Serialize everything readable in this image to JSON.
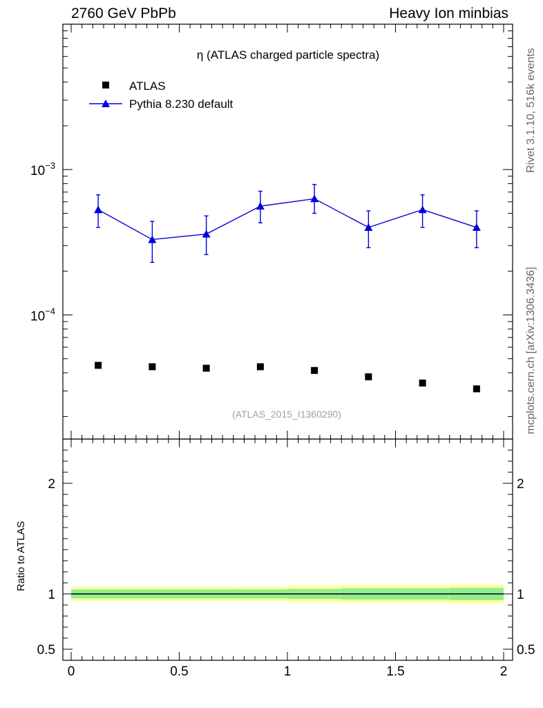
{
  "header": {
    "left": "2760 GeV PbPb",
    "right": "Heavy Ion minbias"
  },
  "side_labels": {
    "rivet": "Rivet 3.1.10,  516k events",
    "mcplots": "mcplots.cern.ch [arXiv:1306.3436]"
  },
  "colors": {
    "mc": "#0000dd",
    "data": "#000000",
    "band_inner": "#90ee90",
    "band_outer": "#ffff99"
  },
  "chart_data": [
    {
      "type": "scatter",
      "title": "η (ATLAS charged particle spectra)",
      "analysis_tag": "(ATLAS_2015_I1360290)",
      "yscale": "log",
      "xlim": [
        0,
        2
      ],
      "ylim": [
        1.4e-05,
        0.01
      ],
      "ytick_labels": [
        {
          "value": 0.001,
          "base": "10",
          "exp": "−3"
        },
        {
          "value": 0.0001,
          "base": "10",
          "exp": "−4"
        }
      ],
      "legend": "top-left",
      "series": [
        {
          "name": "ATLAS",
          "marker": "square",
          "x": [
            0.125,
            0.375,
            0.625,
            0.875,
            1.125,
            1.375,
            1.625,
            1.875
          ],
          "y": [
            4.5e-05,
            4.4e-05,
            4.3e-05,
            4.4e-05,
            4.15e-05,
            3.75e-05,
            3.4e-05,
            3.1e-05
          ]
        },
        {
          "name": "Pythia 8.230 default",
          "marker": "triangle",
          "line": true,
          "x": [
            0.125,
            0.375,
            0.625,
            0.875,
            1.125,
            1.375,
            1.625,
            1.875
          ],
          "y": [
            0.00053,
            0.00033,
            0.00036,
            0.00056,
            0.00063,
            0.0004,
            0.00053,
            0.0004
          ],
          "yerr_low": [
            0.00013,
            0.0001,
            0.0001,
            0.00013,
            0.00013,
            0.00011,
            0.00013,
            0.00011
          ],
          "yerr_high": [
            0.00014,
            0.00011,
            0.00012,
            0.00015,
            0.00016,
            0.00012,
            0.00014,
            0.00012
          ]
        }
      ]
    },
    {
      "type": "line",
      "ylabel": "Ratio to ATLAS",
      "xlim": [
        0,
        2
      ],
      "ylim": [
        0.4,
        2.4
      ],
      "x_ticks": [
        0,
        0.5,
        1,
        1.5,
        2
      ],
      "x_tick_labels": [
        "0",
        "0.5",
        "1",
        "1.5",
        "2"
      ],
      "y_ticks": [
        0.5,
        1,
        2
      ],
      "y_tick_labels": [
        "0.5",
        "1",
        "2"
      ],
      "reference": 1,
      "bands": {
        "edges": [
          0,
          0.25,
          0.5,
          0.75,
          1,
          1.25,
          1.5,
          1.75,
          2
        ],
        "inner_low": [
          0.96,
          0.96,
          0.96,
          0.96,
          0.955,
          0.95,
          0.95,
          0.945
        ],
        "inner_high": [
          1.04,
          1.04,
          1.04,
          1.04,
          1.045,
          1.05,
          1.05,
          1.055
        ],
        "outer_low": [
          0.935,
          0.935,
          0.935,
          0.935,
          0.925,
          0.92,
          0.92,
          0.915
        ],
        "outer_high": [
          1.065,
          1.065,
          1.065,
          1.065,
          1.075,
          1.08,
          1.08,
          1.085
        ]
      }
    }
  ]
}
